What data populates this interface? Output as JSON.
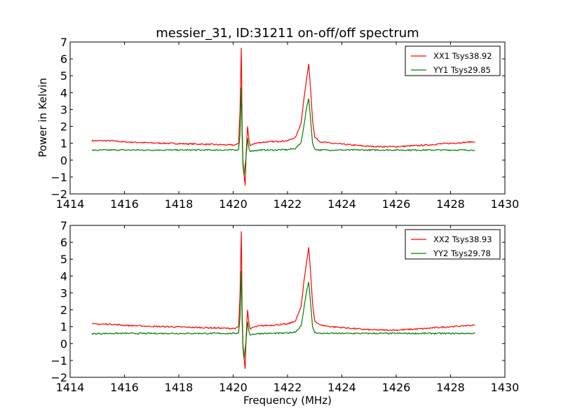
{
  "title": "messier_31, ID:31211 on-off/off spectrum",
  "xlabel": "Frequency (MHz)",
  "ylabel": "Power in Kelvin",
  "chart_data": [
    {
      "type": "line",
      "title": "messier_31, ID:31211 on-off/off spectrum",
      "xlabel": "",
      "ylabel": "Power in Kelvin",
      "xlim": [
        1414,
        1430
      ],
      "ylim": [
        -2,
        7
      ],
      "xticks": [
        1414,
        1416,
        1418,
        1420,
        1422,
        1424,
        1426,
        1428,
        1430
      ],
      "yticks": [
        -2,
        -1,
        0,
        1,
        2,
        3,
        4,
        5,
        6,
        7
      ],
      "grid": false,
      "legend_position": "top-right",
      "series": [
        {
          "name": "XX1 Tsys38.92",
          "color": "#ff0000",
          "x": [
            1414.8,
            1415.5,
            1416.0,
            1417.0,
            1418.0,
            1419.0,
            1419.8,
            1420.1,
            1420.2,
            1420.25,
            1420.3,
            1420.33,
            1420.36,
            1420.4,
            1420.44,
            1420.48,
            1420.53,
            1420.58,
            1420.63,
            1420.7,
            1421.0,
            1421.5,
            1422.0,
            1422.3,
            1422.5,
            1422.6,
            1422.7,
            1422.78,
            1422.85,
            1422.92,
            1423.0,
            1423.2,
            1423.6,
            1424.0,
            1424.5,
            1425.0,
            1425.5,
            1426.0,
            1426.5,
            1427.0,
            1427.5,
            1428.0,
            1428.5,
            1428.9
          ],
          "values": [
            1.15,
            1.15,
            1.08,
            1.02,
            0.98,
            0.94,
            0.9,
            0.9,
            1.0,
            2.8,
            6.65,
            2.0,
            0.0,
            -0.85,
            -1.5,
            0.5,
            2.0,
            1.2,
            0.85,
            0.95,
            1.05,
            1.1,
            1.15,
            1.35,
            2.2,
            3.6,
            4.8,
            5.7,
            4.2,
            2.4,
            1.35,
            1.1,
            1.0,
            0.95,
            0.88,
            0.82,
            0.8,
            0.8,
            0.84,
            0.88,
            0.95,
            1.0,
            1.05,
            1.1
          ]
        },
        {
          "name": "YY1 Tsys29.85",
          "color": "#008000",
          "x": [
            1414.8,
            1415.5,
            1416.0,
            1417.0,
            1418.0,
            1419.0,
            1419.8,
            1420.1,
            1420.2,
            1420.25,
            1420.3,
            1420.33,
            1420.36,
            1420.4,
            1420.44,
            1420.48,
            1420.53,
            1420.58,
            1420.63,
            1420.7,
            1421.0,
            1421.5,
            1422.0,
            1422.3,
            1422.5,
            1422.6,
            1422.7,
            1422.78,
            1422.85,
            1422.92,
            1423.0,
            1423.2,
            1423.6,
            1424.0,
            1424.5,
            1425.0,
            1425.5,
            1426.0,
            1426.5,
            1427.0,
            1427.5,
            1428.0,
            1428.5,
            1428.9
          ],
          "values": [
            0.58,
            0.6,
            0.6,
            0.6,
            0.6,
            0.6,
            0.6,
            0.6,
            0.65,
            1.5,
            4.3,
            1.4,
            -0.3,
            -0.9,
            -0.3,
            0.3,
            1.3,
            0.7,
            0.5,
            0.55,
            0.6,
            0.6,
            0.62,
            0.7,
            1.05,
            2.0,
            3.1,
            3.65,
            2.4,
            1.0,
            0.65,
            0.6,
            0.6,
            0.6,
            0.6,
            0.6,
            0.6,
            0.6,
            0.6,
            0.6,
            0.6,
            0.6,
            0.6,
            0.6
          ]
        }
      ]
    },
    {
      "type": "line",
      "title": "",
      "xlabel": "Frequency (MHz)",
      "ylabel": "",
      "xlim": [
        1414,
        1430
      ],
      "ylim": [
        -2,
        7
      ],
      "xticks": [
        1414,
        1416,
        1418,
        1420,
        1422,
        1424,
        1426,
        1428,
        1430
      ],
      "yticks": [
        -2,
        -1,
        0,
        1,
        2,
        3,
        4,
        5,
        6,
        7
      ],
      "grid": false,
      "legend_position": "top-right",
      "series": [
        {
          "name": "XX2 Tsys38.93",
          "color": "#ff0000",
          "x": [
            1414.8,
            1415.5,
            1416.0,
            1417.0,
            1418.0,
            1419.0,
            1419.8,
            1420.1,
            1420.2,
            1420.25,
            1420.3,
            1420.33,
            1420.36,
            1420.4,
            1420.44,
            1420.48,
            1420.53,
            1420.58,
            1420.63,
            1420.7,
            1421.0,
            1421.5,
            1422.0,
            1422.3,
            1422.5,
            1422.6,
            1422.7,
            1422.78,
            1422.85,
            1422.92,
            1423.0,
            1423.2,
            1423.6,
            1424.0,
            1424.5,
            1425.0,
            1425.5,
            1426.0,
            1426.5,
            1427.0,
            1427.5,
            1428.0,
            1428.5,
            1428.9
          ],
          "values": [
            1.15,
            1.15,
            1.08,
            1.02,
            0.98,
            0.94,
            0.9,
            0.9,
            1.0,
            2.8,
            6.65,
            2.0,
            0.0,
            -0.85,
            -1.5,
            0.5,
            2.0,
            1.2,
            0.85,
            0.95,
            1.05,
            1.1,
            1.15,
            1.35,
            2.2,
            3.6,
            4.8,
            5.7,
            4.2,
            2.4,
            1.35,
            1.1,
            1.0,
            0.95,
            0.88,
            0.82,
            0.8,
            0.8,
            0.84,
            0.88,
            0.95,
            1.0,
            1.05,
            1.1
          ]
        },
        {
          "name": "YY2 Tsys29.78",
          "color": "#008000",
          "x": [
            1414.8,
            1415.5,
            1416.0,
            1417.0,
            1418.0,
            1419.0,
            1419.8,
            1420.1,
            1420.2,
            1420.25,
            1420.3,
            1420.33,
            1420.36,
            1420.4,
            1420.44,
            1420.48,
            1420.53,
            1420.58,
            1420.63,
            1420.7,
            1421.0,
            1421.5,
            1422.0,
            1422.3,
            1422.5,
            1422.6,
            1422.7,
            1422.78,
            1422.85,
            1422.92,
            1423.0,
            1423.2,
            1423.6,
            1424.0,
            1424.5,
            1425.0,
            1425.5,
            1426.0,
            1426.5,
            1427.0,
            1427.5,
            1428.0,
            1428.5,
            1428.9
          ],
          "values": [
            0.58,
            0.6,
            0.6,
            0.6,
            0.6,
            0.6,
            0.6,
            0.6,
            0.65,
            1.5,
            4.3,
            1.4,
            -0.3,
            -0.9,
            -0.3,
            0.3,
            1.3,
            0.7,
            0.5,
            0.55,
            0.6,
            0.6,
            0.62,
            0.7,
            1.05,
            2.0,
            3.1,
            3.65,
            2.4,
            1.0,
            0.65,
            0.6,
            0.6,
            0.6,
            0.6,
            0.6,
            0.6,
            0.6,
            0.6,
            0.6,
            0.6,
            0.6,
            0.6,
            0.6
          ]
        }
      ]
    }
  ]
}
